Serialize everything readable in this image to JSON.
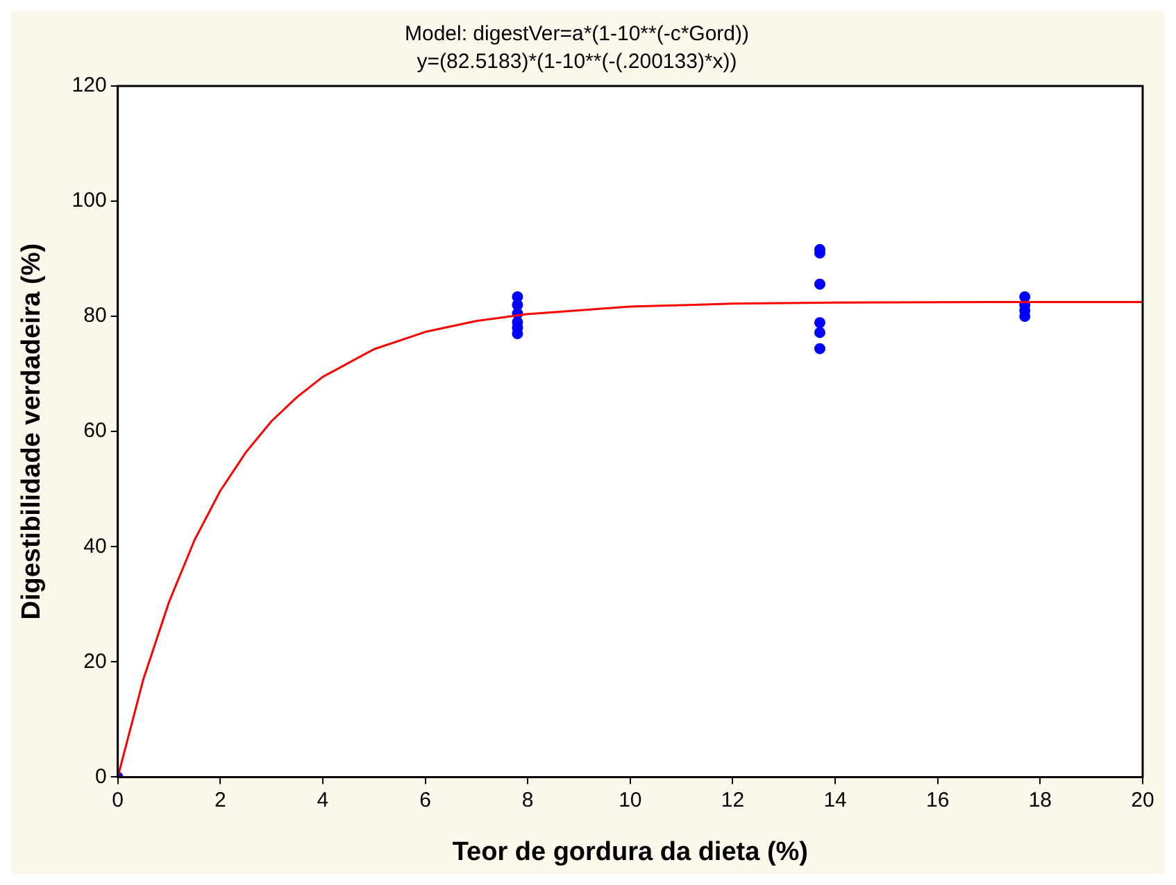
{
  "chart_data": {
    "type": "scatter",
    "title": "Model: digestVer=a*(1-10**(-c*Gord))",
    "subtitle": "y=(82.5183)*(1-10**(-(.200133)*x))",
    "xlabel": "Teor de gordura da dieta (%)",
    "ylabel": "Digestibilidade verdadeira (%)",
    "xlim": [
      0,
      20
    ],
    "xticks": [
      0,
      2,
      4,
      6,
      8,
      10,
      12,
      14,
      16,
      18,
      20
    ],
    "ylim": [
      0,
      120
    ],
    "yticks": [
      0,
      20,
      40,
      60,
      80,
      100,
      120
    ],
    "grid": false,
    "legend": false,
    "marker": "circle",
    "series": [
      {
        "type": "line",
        "color": "#ff0000",
        "marker": "none",
        "x": [
          0,
          0.5,
          1,
          1.5,
          2,
          2.5,
          3,
          3.5,
          4,
          5,
          6,
          7,
          8,
          10,
          12,
          14,
          17,
          20
        ],
        "values": [
          0,
          17.0,
          30.4,
          41.2,
          49.7,
          56.4,
          61.8,
          66.0,
          69.5,
          74.3,
          77.3,
          79.2,
          80.4,
          81.7,
          82.2,
          82.4,
          82.5,
          82.5
        ]
      },
      {
        "type": "scatter",
        "color": "#0000ff",
        "x": [
          0,
          7.8,
          7.8,
          7.8,
          7.8,
          7.8,
          7.8,
          13.7,
          13.7,
          13.7,
          13.7,
          13.7,
          13.7,
          17.7,
          17.7,
          17.7,
          17.7
        ],
        "values": [
          0,
          83.4,
          82,
          80.5,
          79,
          78,
          77,
          91.6,
          91,
          85.6,
          78.9,
          77.2,
          74.4,
          83.4,
          82,
          81,
          80
        ]
      }
    ]
  }
}
